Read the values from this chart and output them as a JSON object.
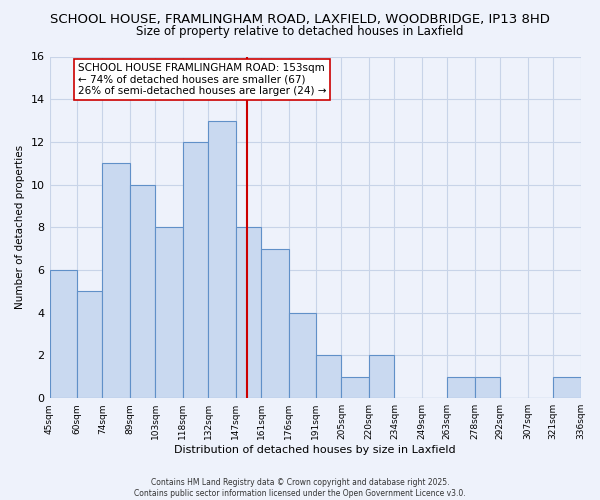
{
  "title": "SCHOOL HOUSE, FRAMLINGHAM ROAD, LAXFIELD, WOODBRIDGE, IP13 8HD",
  "subtitle": "Size of property relative to detached houses in Laxfield",
  "xlabel": "Distribution of detached houses by size in Laxfield",
  "ylabel": "Number of detached properties",
  "bins": [
    45,
    60,
    74,
    89,
    103,
    118,
    132,
    147,
    161,
    176,
    191,
    205,
    220,
    234,
    249,
    263,
    278,
    292,
    307,
    321,
    336
  ],
  "bin_labels": [
    "45sqm",
    "60sqm",
    "74sqm",
    "89sqm",
    "103sqm",
    "118sqm",
    "132sqm",
    "147sqm",
    "161sqm",
    "176sqm",
    "191sqm",
    "205sqm",
    "220sqm",
    "234sqm",
    "249sqm",
    "263sqm",
    "278sqm",
    "292sqm",
    "307sqm",
    "321sqm",
    "336sqm"
  ],
  "counts": [
    6,
    5,
    11,
    10,
    8,
    12,
    13,
    8,
    7,
    4,
    2,
    1,
    2,
    0,
    0,
    1,
    1,
    0,
    0,
    1,
    0
  ],
  "bar_color": "#c9d9f0",
  "bar_edge_color": "#6090c8",
  "vline_x": 153,
  "vline_color": "#cc0000",
  "annotation_text": "SCHOOL HOUSE FRAMLINGHAM ROAD: 153sqm\n← 74% of detached houses are smaller (67)\n26% of semi-detached houses are larger (24) →",
  "annotation_box_color": "#ffffff",
  "annotation_box_edge": "#cc0000",
  "ylim": [
    0,
    16
  ],
  "yticks": [
    0,
    2,
    4,
    6,
    8,
    10,
    12,
    14,
    16
  ],
  "footer_line1": "Contains HM Land Registry data © Crown copyright and database right 2025.",
  "footer_line2": "Contains public sector information licensed under the Open Government Licence v3.0.",
  "background_color": "#eef2fb",
  "plot_bg_color": "#eef2fb",
  "grid_color": "#c8d4e8",
  "title_fontsize": 9.5,
  "subtitle_fontsize": 8.5,
  "annotation_fontsize": 7.5
}
